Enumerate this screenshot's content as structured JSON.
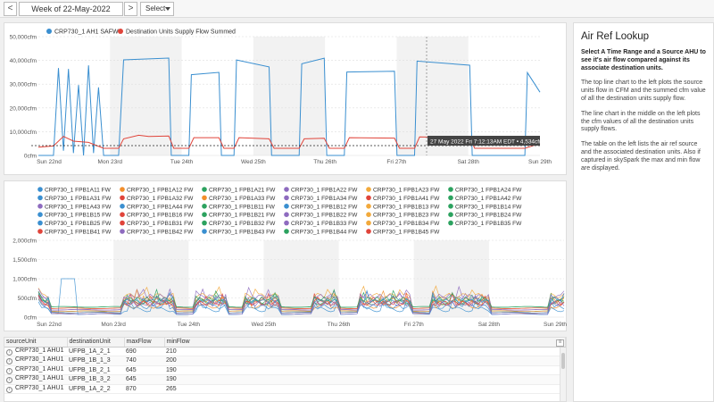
{
  "toolbar": {
    "prev_label": "<",
    "next_label": ">",
    "week_label": "Week of 22-May-2022",
    "select_label": "Select"
  },
  "colors": {
    "supply": "#3a8fd0",
    "dest": "#e0443a",
    "weekend_band": "#f2f2f2"
  },
  "chart1": {
    "legend": [
      "CRP730_1 AH1 SAFW",
      "Destination Units Supply Flow Summed"
    ],
    "y_ticks": [
      "50,000cfm",
      "40,000cfm",
      "30,000cfm",
      "20,000cfm",
      "10,000cfm",
      "0cfm"
    ],
    "x_ticks": [
      "Sun 22nd",
      "Mon 23rd",
      "Tue 24th",
      "Wed 25th",
      "Thu 26th",
      "Fri 27th",
      "Sat 28th",
      "Sun 29th"
    ],
    "tooltip": "27 May 2022 Fri 7:12:13AM EDT • 4,534cfm"
  },
  "chart2": {
    "legend": [
      "CRP730_1 FPB1A11 FW",
      "CRP730_1 FPB1A12 FW",
      "CRP730_1 FPB1A21 FW",
      "CRP730_1 FPB1A22 FW",
      "CRP730_1 FPB1A23 FW",
      "CRP730_1 FPB1A24 FW",
      "CRP730_1 FPB1A31 FW",
      "CRP730_1 FPB1A32 FW",
      "CRP730_1 FPB1A33 FW",
      "CRP730_1 FPB1A34 FW",
      "CRP730_1 FPB1A41 FW",
      "CRP730_1 FPB1A42 FW",
      "CRP730_1 FPB1A43 FW",
      "CRP730_1 FPB1A44 FW",
      "CRP730_1 FPB1B11 FW",
      "CRP730_1 FPB1B12 FW",
      "CRP730_1 FPB1B13 FW",
      "CRP730_1 FPB1B14 FW",
      "CRP730_1 FPB1B15 FW",
      "CRP730_1 FPB1B16 FW",
      "CRP730_1 FPB1B21 FW",
      "CRP730_1 FPB1B22 FW",
      "CRP730_1 FPB1B23 FW",
      "CRP730_1 FPB1B24 FW",
      "CRP730_1 FPB1B25 FW",
      "CRP730_1 FPB1B31 FW",
      "CRP730_1 FPB1B32 FW",
      "CRP730_1 FPB1B33 FW",
      "CRP730_1 FPB1B34 FW",
      "CRP730_1 FPB1B35 FW",
      "CRP730_1 FPB1B41 FW",
      "CRP730_1 FPB1B42 FW",
      "CRP730_1 FPB1B43 FW",
      "CRP730_1 FPB1B44 FW",
      "CRP730_1 FPB1B45 FW"
    ],
    "legend_colors": [
      "#3a8fd0",
      "#f28e2b",
      "#2ca25f",
      "#8e6bbf",
      "#f2a93b",
      "#2ca25f",
      "#3a8fd0",
      "#e0443a",
      "#f28e2b",
      "#8e6bbf",
      "#e0443a",
      "#2ca25f",
      "#8e6bbf",
      "#3a8fd0",
      "#2ca25f",
      "#3a8fd0",
      "#f2a93b",
      "#2ca25f",
      "#3a8fd0",
      "#e0443a",
      "#2ca25f",
      "#8e6bbf",
      "#f2a93b",
      "#2ca25f",
      "#3a8fd0",
      "#e0443a",
      "#2ca25f",
      "#8e6bbf",
      "#f2a93b",
      "#2ca25f",
      "#e0443a",
      "#8e6bbf",
      "#3a8fd0",
      "#2ca25f",
      "#e0443a"
    ],
    "y_ticks": [
      "2,000cfm",
      "1,500cfm",
      "1,000cfm",
      "500cfm",
      "0cfm"
    ],
    "x_ticks": [
      "Sun 22nd",
      "Mon 23rd",
      "Tue 24th",
      "Wed 25th",
      "Thu 26th",
      "Fri 27th",
      "Sat 28th",
      "Sun 29th"
    ]
  },
  "table": {
    "columns": [
      "sourceUnit",
      "destinationUnit",
      "maxFlow",
      "minFlow"
    ],
    "rows": [
      [
        "CRP730_1 AHU1",
        "UFPB_1A_2_1",
        "690",
        "210"
      ],
      [
        "CRP730_1 AHU1",
        "UFPB_1B_1_3",
        "740",
        "200"
      ],
      [
        "CRP730_1 AHU1",
        "UFPB_1B_2_1",
        "645",
        "190"
      ],
      [
        "CRP730_1 AHU1",
        "UFPB_1B_3_2",
        "645",
        "190"
      ],
      [
        "CRP730_1 AHU1",
        "UFPB_1A_2_2",
        "870",
        "265"
      ]
    ]
  },
  "side": {
    "title": "Air Ref Lookup",
    "p1": "Select A Time Range and a Source AHU to see it's air flow compared against its associate destination units.",
    "p2": "The top line chart to the left plots the source units flow in CFM and the summed cfm value of all the destination units supply flow.",
    "p3": "The line chart in the middle on the left plots the cfm values of all the destination units supply flows.",
    "p4": "The table on the left lists the air ref source and the associated destination units. Also if captured in skySpark the max and min flow are displayed."
  }
}
